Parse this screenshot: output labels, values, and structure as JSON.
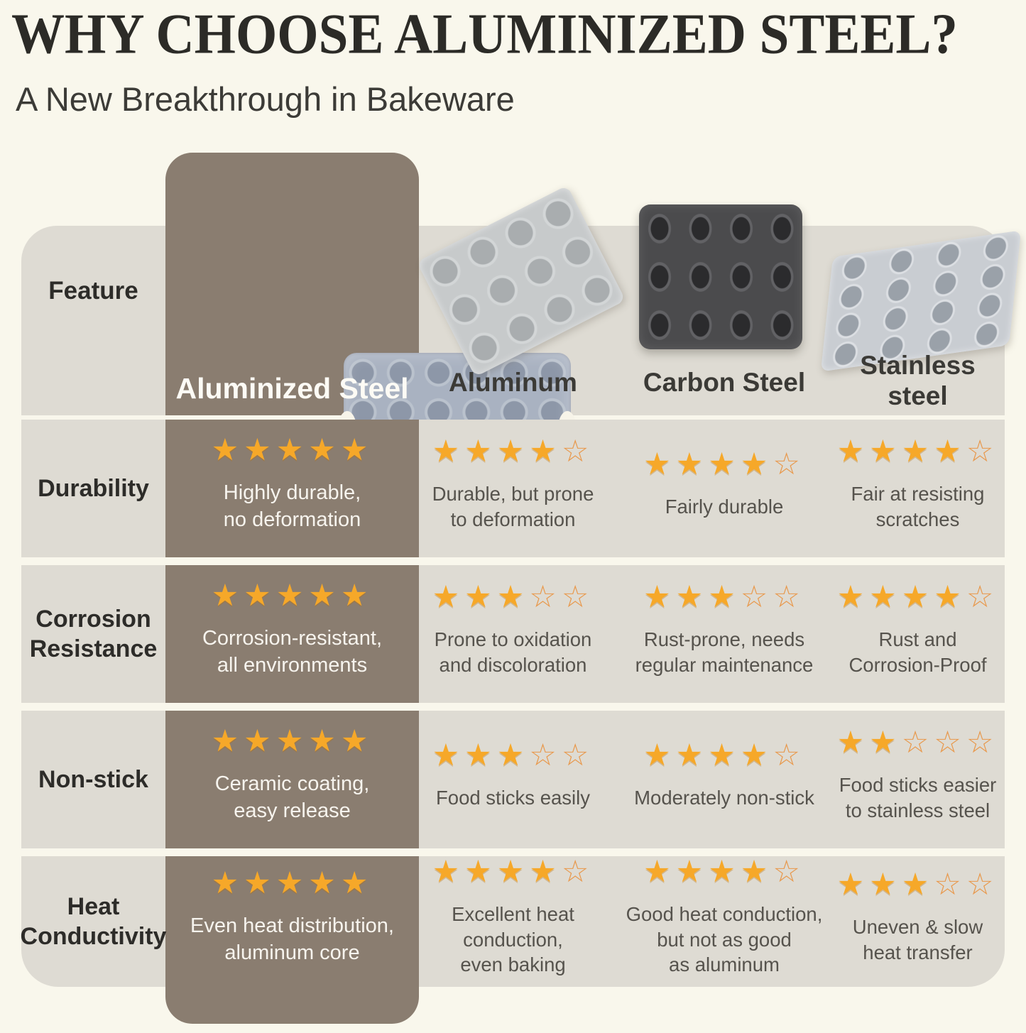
{
  "page": {
    "title": "WHY CHOOSE ALUMINIZED STEEL?",
    "subtitle": "A New Breakthrough in Bakeware"
  },
  "colors": {
    "page_background": "#f9f7ec",
    "panel_background": "#dedbd3",
    "highlight_column": "#8a7d70",
    "star_filled": "#f6a829",
    "star_empty_outline": "#e8994d",
    "title_text": "#2c2b27",
    "body_text": "#56534d",
    "highlight_text": "#f7f4ee"
  },
  "icons": {
    "star_filled_glyph": "★",
    "star_empty_glyph": "☆",
    "pan_images": [
      "aluminized-steel-24-cup-muffin-pan",
      "aluminum-12-cup-muffin-pan",
      "carbon-steel-12-cup-muffin-pan",
      "stainless-steel-12-cup-muffin-pan"
    ]
  },
  "chart_data": {
    "type": "table",
    "title": "WHY CHOOSE ALUMINIZED STEEL?",
    "subtitle": "A New Breakthrough in Bakeware",
    "feature_header": "Feature",
    "columns": [
      "Aluminized Steel",
      "Aluminum",
      "Carbon Steel",
      "Stainless steel"
    ],
    "columns_display": [
      "Aluminized Steel",
      "Aluminum",
      "Carbon Steel",
      "Stainless\nsteel"
    ],
    "highlight_column_index": 0,
    "max_stars": 5,
    "rows": [
      {
        "feature": "Durability",
        "feature_display": "Durability",
        "ratings": [
          5,
          4,
          4,
          4
        ],
        "notes": [
          "Highly durable,\nno deformation",
          "Durable, but prone\nto deformation",
          "Fairly durable",
          "Fair at resisting\nscratches"
        ]
      },
      {
        "feature": "Corrosion Resistance",
        "feature_display": "Corrosion\nResistance",
        "ratings": [
          5,
          3,
          3,
          4
        ],
        "notes": [
          "Corrosion-resistant,\nall environments",
          "Prone to oxidation\nand discoloration",
          "Rust-prone, needs\nregular maintenance",
          "Rust and\nCorrosion-Proof"
        ]
      },
      {
        "feature": "Non-stick",
        "feature_display": "Non-stick",
        "ratings": [
          5,
          3,
          4,
          2
        ],
        "notes": [
          "Ceramic coating,\neasy release",
          "Food sticks easily",
          "Moderately non-stick",
          "Food sticks easier\nto stainless steel"
        ]
      },
      {
        "feature": "Heat Conductivity",
        "feature_display": "Heat\nConductivity",
        "ratings": [
          5,
          4,
          4,
          3
        ],
        "notes": [
          "Even heat distribution,\naluminum core",
          "Excellent heat\nconduction,\neven baking",
          "Good heat conduction,\nbut not as good\nas aluminum",
          "Uneven & slow\nheat transfer"
        ]
      }
    ]
  }
}
